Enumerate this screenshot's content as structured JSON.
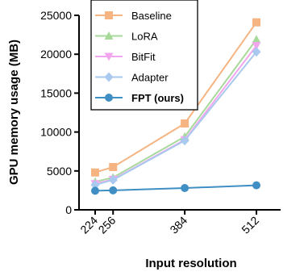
{
  "chart_data": {
    "type": "line",
    "xlabel": "Input resolution",
    "ylabel": "GPU memory usage (MB)",
    "x": [
      224,
      256,
      384,
      512
    ],
    "x_tick_labels": [
      "224",
      "256",
      "384",
      "512"
    ],
    "xlim": [
      224,
      512
    ],
    "ylim": [
      0,
      25000
    ],
    "y_ticks": [
      0,
      5000,
      10000,
      15000,
      20000,
      25000
    ],
    "y_tick_labels": [
      "0",
      "5000",
      "10000",
      "15000",
      "20000",
      "25000"
    ],
    "grid": false,
    "legend_position": "top-left",
    "series": [
      {
        "name": "Baseline",
        "values": [
          4800,
          5500,
          11100,
          24100
        ],
        "color": "#f5b482",
        "marker": "square",
        "bold": false
      },
      {
        "name": "LoRA",
        "values": [
          3600,
          4150,
          9400,
          21900
        ],
        "color": "#a6d99a",
        "marker": "triangle-up",
        "bold": false
      },
      {
        "name": "BitFit",
        "values": [
          3350,
          3900,
          9000,
          21100
        ],
        "color": "#f2a6ee",
        "marker": "triangle-down",
        "bold": false
      },
      {
        "name": "Adapter",
        "values": [
          3200,
          3850,
          8900,
          20300
        ],
        "color": "#a9c9ef",
        "marker": "diamond",
        "bold": false
      },
      {
        "name": "FPT (ours)",
        "values": [
          2450,
          2500,
          2800,
          3150
        ],
        "color": "#3f8fc4",
        "marker": "circle",
        "bold": true
      }
    ]
  }
}
